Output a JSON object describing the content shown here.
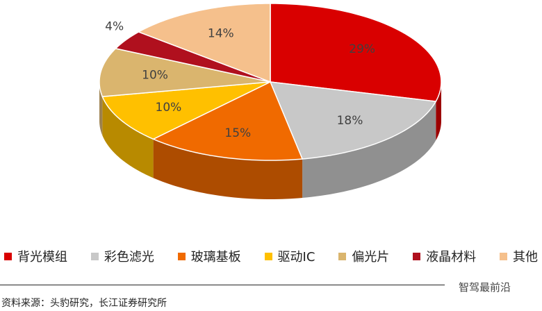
{
  "chart_data": {
    "type": "pie",
    "categories": [
      "背光模组",
      "彩色滤光",
      "玻璃基板",
      "驱动IC",
      "偏光片",
      "液晶材料",
      "其他"
    ],
    "values": [
      29,
      18,
      15,
      10,
      10,
      4,
      14
    ],
    "value_labels": [
      "29%",
      "18%",
      "15%",
      "10%",
      "10%",
      "4%",
      "14%"
    ],
    "colors": [
      "#d90000",
      "#c8c8c8",
      "#f06a00",
      "#ffc000",
      "#dab56e",
      "#b0101e",
      "#f5c08c"
    ],
    "source": "资料来源：头豹研究，长江证券研究所",
    "watermark": "智驾最前沿"
  }
}
